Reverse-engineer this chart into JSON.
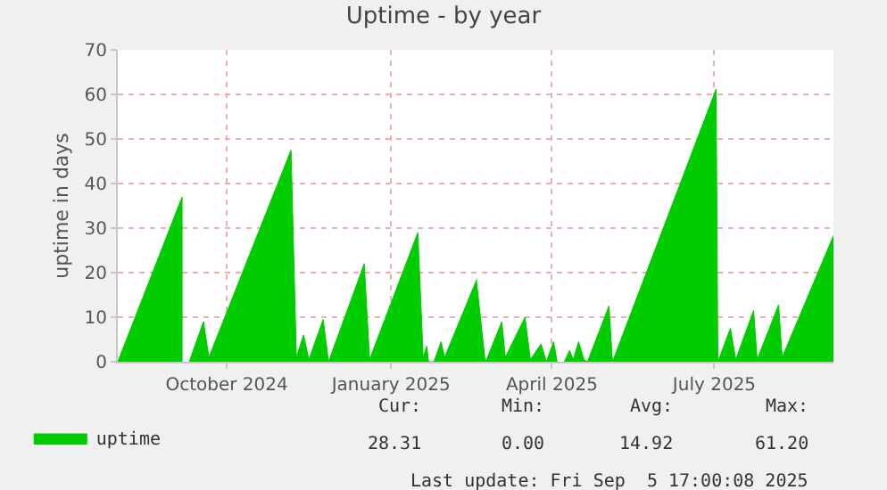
{
  "chart_data": {
    "type": "area",
    "title": "Uptime - by year",
    "ylabel": "uptime in days",
    "xlim": [
      "2024-08-01",
      "2025-09-05T17:00"
    ],
    "ylim": [
      0,
      70
    ],
    "yticks": [
      0,
      10,
      20,
      30,
      40,
      50,
      60,
      70
    ],
    "xticks": [
      {
        "value": "2024-10-01",
        "label": "October 2024"
      },
      {
        "value": "2025-01-01",
        "label": "January 2025"
      },
      {
        "value": "2025-04-01",
        "label": "April 2025"
      },
      {
        "value": "2025-07-01",
        "label": "July 2025"
      }
    ],
    "grid": true,
    "legend": "bottom left",
    "x": [
      "2024-08-01",
      "2024-09-06",
      "2024-09-06",
      "2024-09-07",
      "2024-09-10",
      "2024-09-18",
      "2024-09-21",
      "2024-11-06",
      "2024-11-09",
      "2024-11-13",
      "2024-11-16",
      "2024-11-24",
      "2024-11-27",
      "2024-12-17",
      "2024-12-20",
      "2025-01-16",
      "2025-01-19",
      "2025-01-21",
      "2025-01-22",
      "2025-01-25",
      "2025-01-29",
      "2025-01-31",
      "2025-02-18",
      "2025-02-19",
      "2025-02-23",
      "2025-03-04",
      "2025-03-06",
      "2025-03-17",
      "2025-03-20",
      "2025-03-26",
      "2025-03-29",
      "2025-04-02",
      "2025-04-04",
      "2025-04-05",
      "2025-04-08",
      "2025-04-11",
      "2025-04-13",
      "2025-04-16",
      "2025-04-19",
      "2025-04-21",
      "2025-05-03",
      "2025-05-05",
      "2025-07-02",
      "2025-07-03",
      "2025-07-10",
      "2025-07-13",
      "2025-07-23",
      "2025-07-25",
      "2025-08-06",
      "2025-08-08",
      "2025-09-05T17:00"
    ],
    "series": [
      {
        "name": "uptime",
        "color": "#00cc00",
        "values": [
          0,
          37,
          0,
          null,
          0,
          9,
          1,
          47.5,
          1,
          6,
          0.5,
          9.5,
          0,
          22,
          0.5,
          29,
          1,
          3.5,
          0,
          0,
          4.5,
          1,
          18.5,
          null,
          0,
          9,
          1,
          10,
          0.5,
          4,
          0,
          4.5,
          0,
          null,
          0,
          2.5,
          0.5,
          4.5,
          0.5,
          0,
          12.5,
          0,
          61.2,
          0,
          7.5,
          0.5,
          11.5,
          0.5,
          12.8,
          1,
          28.3
        ]
      }
    ],
    "annotations": [
      "Cur:",
      "Min:",
      "Avg:",
      "Max:",
      "28.31",
      "0.00",
      "14.92",
      "61.20",
      "Last update: Fri Sep  5 17:00:08 2025"
    ]
  }
}
